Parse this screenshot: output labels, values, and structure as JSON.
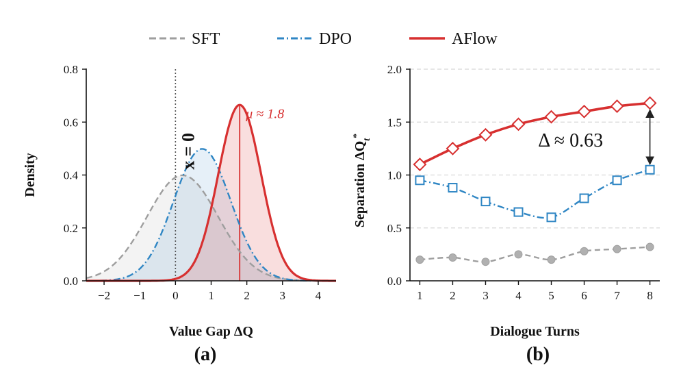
{
  "legend": {
    "entries": [
      {
        "name": "SFT",
        "color": "#9e9e9e",
        "style": "dashed"
      },
      {
        "name": "DPO",
        "color": "#2f86c4",
        "style": "dashdot"
      },
      {
        "name": "AFlow",
        "color": "#d73030",
        "style": "solid"
      }
    ]
  },
  "chart_data": [
    {
      "type": "area",
      "panel_label": "(a)",
      "xlabel": "Value Gap ΔQ",
      "ylabel": "Density",
      "xlim": [
        -2.5,
        4.5
      ],
      "ylim": [
        0,
        0.8
      ],
      "xticks": [
        -2,
        -1,
        0,
        1,
        2,
        3,
        4
      ],
      "xtick_labels": [
        "−2",
        "−1",
        "0",
        "1",
        "2",
        "3",
        "4"
      ],
      "yticks": [
        0.0,
        0.2,
        0.4,
        0.6,
        0.8
      ],
      "ytick_labels": [
        "0.0",
        "0.2",
        "0.4",
        "0.6",
        "0.8"
      ],
      "series": [
        {
          "name": "SFT",
          "distribution": "normal",
          "mean": 0.2,
          "std": 1.0,
          "peak_density": 0.4,
          "color": "#9e9e9e"
        },
        {
          "name": "DPO",
          "distribution": "normal",
          "mean": 0.75,
          "std": 0.8,
          "peak_density": 0.5,
          "color": "#2f86c4"
        },
        {
          "name": "AFlow",
          "distribution": "normal",
          "mean": 1.8,
          "std": 0.6,
          "peak_density": 0.665,
          "color": "#d73030"
        }
      ],
      "annotations": {
        "zero_line": {
          "x": 0,
          "label": "x = 0"
        },
        "mean_line": {
          "x": 1.8,
          "label": "μ ≈ 1.8"
        }
      }
    },
    {
      "type": "line",
      "panel_label": "(b)",
      "xlabel": "Dialogue Turns",
      "ylabel": "Separation ΔQ",
      "ylabel_sub": "t",
      "ylabel_sup": "*",
      "xlim": [
        0.7,
        8.3
      ],
      "ylim": [
        0,
        2.0
      ],
      "grid": true,
      "categories": [
        1,
        2,
        3,
        4,
        5,
        6,
        7,
        8
      ],
      "xtick_labels": [
        "1",
        "2",
        "3",
        "4",
        "5",
        "6",
        "7",
        "8"
      ],
      "yticks": [
        0.0,
        0.5,
        1.0,
        1.5,
        2.0
      ],
      "ytick_labels": [
        "0.0",
        "0.5",
        "1.0",
        "1.5",
        "2.0"
      ],
      "series": [
        {
          "name": "SFT",
          "marker": "circle",
          "color": "#9e9e9e",
          "values": [
            0.2,
            0.22,
            0.18,
            0.25,
            0.2,
            0.28,
            0.3,
            0.32
          ]
        },
        {
          "name": "DPO",
          "marker": "square",
          "color": "#2f86c4",
          "values": [
            0.95,
            0.88,
            0.75,
            0.65,
            0.6,
            0.78,
            0.95,
            1.05
          ]
        },
        {
          "name": "AFlow",
          "marker": "diamond",
          "color": "#d73030",
          "values": [
            1.1,
            1.25,
            1.38,
            1.48,
            1.55,
            1.6,
            1.65,
            1.68
          ]
        }
      ],
      "annotations": {
        "gap": {
          "x": 8,
          "from": 1.05,
          "to": 1.68,
          "label": "Δ ≈ 0.63"
        }
      }
    }
  ]
}
